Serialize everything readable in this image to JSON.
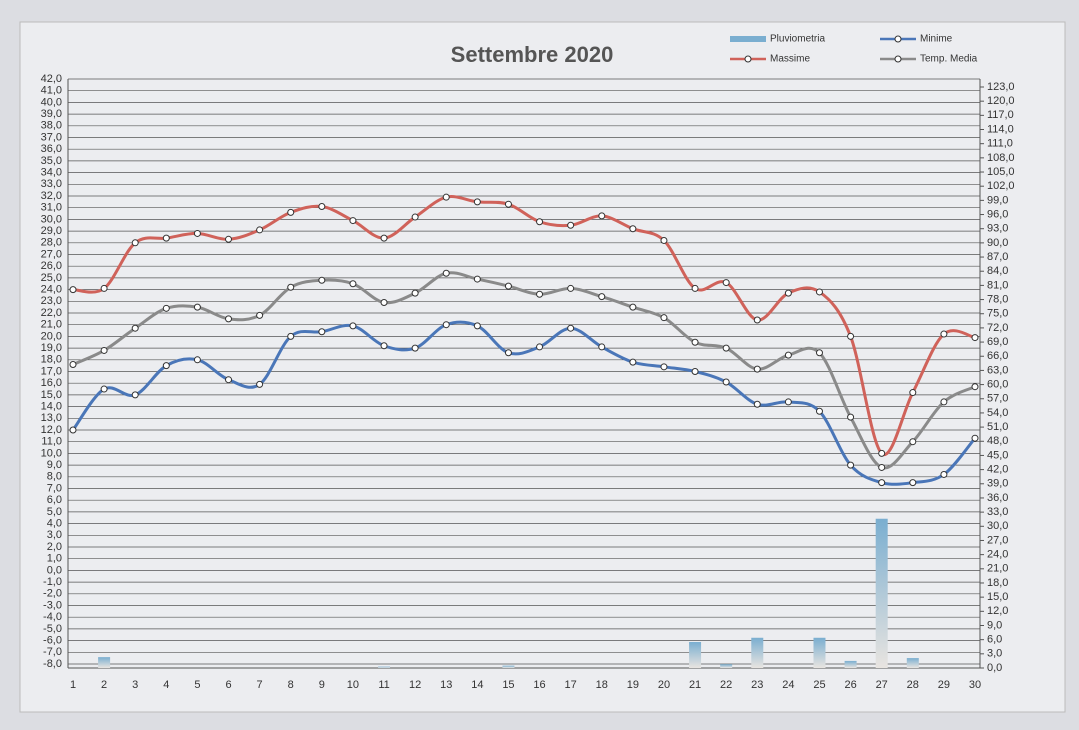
{
  "chart_data": {
    "type": "combo",
    "title": "Settembre 2020",
    "categories": [
      1,
      2,
      3,
      4,
      5,
      6,
      7,
      8,
      9,
      10,
      11,
      12,
      13,
      14,
      15,
      16,
      17,
      18,
      19,
      20,
      21,
      22,
      23,
      24,
      25,
      26,
      27,
      28,
      29,
      30
    ],
    "series": [
      {
        "name": "Pluviometria",
        "type": "bar",
        "axis": "y2",
        "color": "#7aaed0",
        "values": [
          0,
          2.3,
          0,
          0,
          0,
          0,
          0,
          0,
          0,
          0,
          0.3,
          0,
          0,
          0,
          0.5,
          0,
          0,
          0,
          0,
          0,
          5.5,
          0.8,
          6.4,
          0,
          6.4,
          1.5,
          31.6,
          2.1,
          0,
          0
        ]
      },
      {
        "name": "Minime",
        "type": "line",
        "color": "#4a76b8",
        "values": [
          12.0,
          15.5,
          15.0,
          17.5,
          18.0,
          16.3,
          15.9,
          20.0,
          20.4,
          20.9,
          19.2,
          19.0,
          21.0,
          20.9,
          18.6,
          19.1,
          20.7,
          19.1,
          17.8,
          17.4,
          17.0,
          16.1,
          14.2,
          14.4,
          13.6,
          9.0,
          7.5,
          7.5,
          8.2,
          11.3
        ]
      },
      {
        "name": "Massime",
        "type": "line",
        "color": "#d0625a",
        "values": [
          24.0,
          24.1,
          28.0,
          28.4,
          28.8,
          28.3,
          29.1,
          30.6,
          31.1,
          29.9,
          28.4,
          30.2,
          31.9,
          31.5,
          31.3,
          29.8,
          29.5,
          30.3,
          29.2,
          28.2,
          24.1,
          24.6,
          21.4,
          23.7,
          23.8,
          20.0,
          10.0,
          15.2,
          20.2,
          19.9
        ]
      },
      {
        "name": "Temp. Media",
        "type": "line",
        "color": "#8a8a8a",
        "values": [
          17.6,
          18.8,
          20.7,
          22.4,
          22.5,
          21.5,
          21.8,
          24.2,
          24.8,
          24.5,
          22.9,
          23.7,
          25.4,
          24.9,
          24.3,
          23.6,
          24.1,
          23.4,
          22.5,
          21.6,
          19.5,
          19.0,
          17.2,
          18.4,
          18.6,
          13.1,
          8.8,
          11.0,
          14.4,
          15.7
        ]
      }
    ],
    "ylim": [
      -8,
      42
    ],
    "yticks": [
      {
        "value": 42,
        "label": "42,0"
      },
      {
        "value": 41,
        "label": "41,0"
      },
      {
        "value": 40,
        "label": "40,0"
      },
      {
        "value": 39,
        "label": "39,0"
      },
      {
        "value": 38,
        "label": "38,0"
      },
      {
        "value": 37,
        "label": "37,0"
      },
      {
        "value": 36,
        "label": "36,0"
      },
      {
        "value": 35,
        "label": "35,0"
      },
      {
        "value": 34,
        "label": "34,0"
      },
      {
        "value": 33,
        "label": "33,0"
      },
      {
        "value": 32,
        "label": "32,0"
      },
      {
        "value": 31,
        "label": "31,0"
      },
      {
        "value": 30,
        "label": "30,0"
      },
      {
        "value": 29,
        "label": "29,0"
      },
      {
        "value": 28,
        "label": "28,0"
      },
      {
        "value": 27,
        "label": "27,0"
      },
      {
        "value": 26,
        "label": "26,0"
      },
      {
        "value": 25,
        "label": "25,0"
      },
      {
        "value": 24,
        "label": "24,0"
      },
      {
        "value": 23,
        "label": "23,0"
      },
      {
        "value": 22,
        "label": "22,0"
      },
      {
        "value": 21,
        "label": "21,0"
      },
      {
        "value": 20,
        "label": "20,0"
      },
      {
        "value": 19,
        "label": "19,0"
      },
      {
        "value": 18,
        "label": "18,0"
      },
      {
        "value": 17,
        "label": "17,0"
      },
      {
        "value": 16,
        "label": "16,0"
      },
      {
        "value": 15,
        "label": "15,0"
      },
      {
        "value": 14,
        "label": "14,0"
      },
      {
        "value": 13,
        "label": "13,0"
      },
      {
        "value": 12,
        "label": "12,0"
      },
      {
        "value": 11,
        "label": "11,0"
      },
      {
        "value": 10,
        "label": "10,0"
      },
      {
        "value": 9,
        "label": "9,0"
      },
      {
        "value": 8,
        "label": "8,0"
      },
      {
        "value": 7,
        "label": "7,0"
      },
      {
        "value": 6,
        "label": "6,0"
      },
      {
        "value": 5,
        "label": "5,0"
      },
      {
        "value": 4,
        "label": "4,0"
      },
      {
        "value": 3,
        "label": "3,0"
      },
      {
        "value": 2,
        "label": "2,0"
      },
      {
        "value": 1,
        "label": "1,0"
      },
      {
        "value": 0,
        "label": "0,0"
      },
      {
        "value": -1,
        "label": "-1,0"
      },
      {
        "value": -2,
        "label": "-2,0"
      },
      {
        "value": -3,
        "label": "-3,0"
      },
      {
        "value": -4,
        "label": "-4,0"
      },
      {
        "value": -5,
        "label": "-5,0"
      },
      {
        "value": -6,
        "label": "-6,0"
      },
      {
        "value": -7,
        "label": "-7,0"
      },
      {
        "value": -8,
        "label": "-8,0"
      }
    ],
    "y2lim": [
      0,
      123
    ],
    "y2ticks": [
      {
        "value": 0,
        "label": "0,0"
      },
      {
        "value": 3,
        "label": "3,0"
      },
      {
        "value": 6,
        "label": "6,0"
      },
      {
        "value": 9,
        "label": "9,0"
      },
      {
        "value": 12,
        "label": "12,0"
      },
      {
        "value": 15,
        "label": "15,0"
      },
      {
        "value": 18,
        "label": "18,0"
      },
      {
        "value": 21,
        "label": "21,0"
      },
      {
        "value": 24,
        "label": "24,0"
      },
      {
        "value": 27,
        "label": "27,0"
      },
      {
        "value": 30,
        "label": "30,0"
      },
      {
        "value": 33,
        "label": "33,0"
      },
      {
        "value": 36,
        "label": "36,0"
      },
      {
        "value": 39,
        "label": "39,0"
      },
      {
        "value": 42,
        "label": "42,0"
      },
      {
        "value": 45,
        "label": "45,0"
      },
      {
        "value": 48,
        "label": "48,0"
      },
      {
        "value": 51,
        "label": "51,0"
      },
      {
        "value": 54,
        "label": "54,0"
      },
      {
        "value": 57,
        "label": "57,0"
      },
      {
        "value": 60,
        "label": "60,0"
      },
      {
        "value": 63,
        "label": "63,0"
      },
      {
        "value": 66,
        "label": "66,0"
      },
      {
        "value": 69,
        "label": "69,0"
      },
      {
        "value": 72,
        "label": "72,0"
      },
      {
        "value": 75,
        "label": "75,0"
      },
      {
        "value": 78,
        "label": "78,0"
      },
      {
        "value": 81,
        "label": "81,0"
      },
      {
        "value": 84,
        "label": "84,0"
      },
      {
        "value": 87,
        "label": "87,0"
      },
      {
        "value": 90,
        "label": "90,0"
      },
      {
        "value": 93,
        "label": "93,0"
      },
      {
        "value": 96,
        "label": "96,0"
      },
      {
        "value": 99,
        "label": "99,0"
      },
      {
        "value": 102,
        "label": "102,0"
      },
      {
        "value": 105,
        "label": "105,0"
      },
      {
        "value": 108,
        "label": "108,0"
      },
      {
        "value": 111,
        "label": "111,0"
      },
      {
        "value": 114,
        "label": "114,0"
      },
      {
        "value": 117,
        "label": "117,0"
      },
      {
        "value": 120,
        "label": "120,0"
      },
      {
        "value": 123,
        "label": "123,0"
      }
    ],
    "grid": true,
    "legend": "top-right"
  }
}
